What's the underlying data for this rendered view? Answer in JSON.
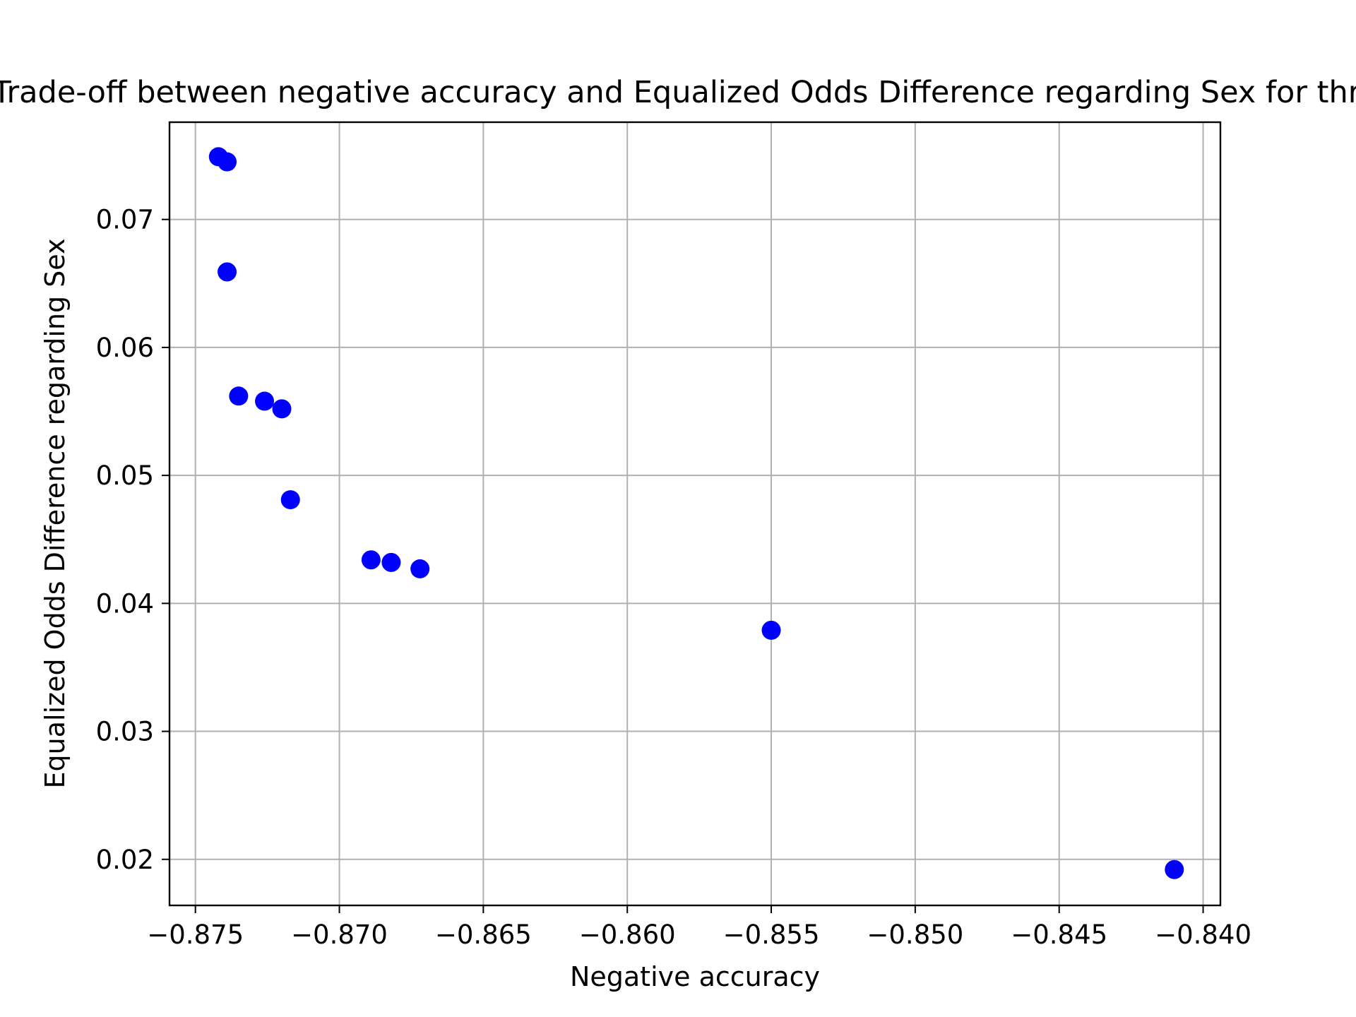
{
  "chart_data": {
    "type": "scatter",
    "title": "Trade-off between negative accuracy and Equalized Odds Difference regarding Sex for three",
    "xlabel": "Negative accuracy",
    "ylabel": "Equalized Odds Difference regarding Sex",
    "xlim": [
      -0.8759,
      -0.8394
    ],
    "ylim": [
      0.0164,
      0.0776
    ],
    "grid": true,
    "marker_color": "#0000ff",
    "xticks": [
      -0.875,
      -0.87,
      -0.865,
      -0.86,
      -0.855,
      -0.85,
      -0.845,
      -0.84
    ],
    "xtick_labels": [
      "−0.875",
      "−0.870",
      "−0.865",
      "−0.860",
      "−0.855",
      "−0.850",
      "−0.845",
      "−0.840"
    ],
    "yticks": [
      0.02,
      0.03,
      0.04,
      0.05,
      0.06,
      0.07
    ],
    "ytick_labels": [
      "0.02",
      "0.03",
      "0.04",
      "0.05",
      "0.06",
      "0.07"
    ],
    "points": [
      {
        "x": -0.8742,
        "y": 0.0749
      },
      {
        "x": -0.8739,
        "y": 0.0745
      },
      {
        "x": -0.8739,
        "y": 0.0659
      },
      {
        "x": -0.8735,
        "y": 0.0562
      },
      {
        "x": -0.8726,
        "y": 0.0558
      },
      {
        "x": -0.872,
        "y": 0.0552
      },
      {
        "x": -0.8717,
        "y": 0.0481
      },
      {
        "x": -0.8689,
        "y": 0.0434
      },
      {
        "x": -0.8682,
        "y": 0.0432
      },
      {
        "x": -0.8672,
        "y": 0.0427
      },
      {
        "x": -0.855,
        "y": 0.0379
      },
      {
        "x": -0.841,
        "y": 0.0192
      }
    ]
  }
}
